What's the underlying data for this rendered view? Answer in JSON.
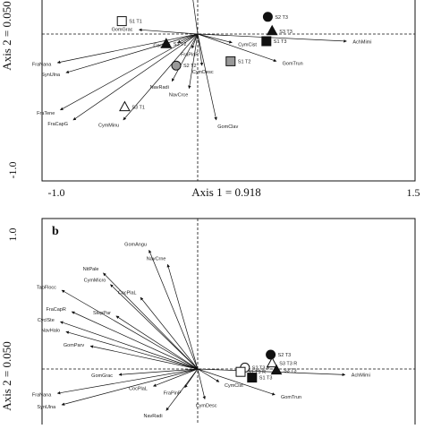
{
  "chart_data": [
    {
      "type": "scatter",
      "panel_label": "",
      "xlabel": "Axis 1 = 0.918",
      "ylabel": "Axis 2 = 0.050",
      "xticks": [
        "-1.0",
        "1.5"
      ],
      "yticks": [
        "-1.0"
      ],
      "xlim": [
        -1.0,
        1.5
      ],
      "ylim": [
        -1.0,
        0.65
      ],
      "species_vectors": [
        {
          "name": "GomParv",
          "x": -0.08,
          "y": 0.58
        },
        {
          "name": "GomGrac",
          "x": -0.41,
          "y": 0.03
        },
        {
          "name": "CocPlaL",
          "x": -0.14,
          "y": -0.06
        },
        {
          "name": "FraPinP",
          "x": -0.04,
          "y": -0.1
        },
        {
          "name": "NavRadi",
          "x": -0.18,
          "y": -0.33
        },
        {
          "name": "NavCrce",
          "x": -0.06,
          "y": -0.38
        },
        {
          "name": "CymDesc",
          "x": 0.03,
          "y": -0.22
        },
        {
          "name": "CymCist",
          "x": 0.24,
          "y": -0.06
        },
        {
          "name": "GomTrun",
          "x": 0.55,
          "y": -0.19
        },
        {
          "name": "AchMimi",
          "x": 1.04,
          "y": -0.05
        },
        {
          "name": "GomClav",
          "x": 0.13,
          "y": -0.6
        },
        {
          "name": "FraNana",
          "x": -0.98,
          "y": -0.2
        },
        {
          "name": "SynUlna",
          "x": -0.92,
          "y": -0.27
        },
        {
          "name": "FraTene",
          "x": -0.96,
          "y": -0.53
        },
        {
          "name": "FraCapG",
          "x": -0.87,
          "y": -0.6
        },
        {
          "name": "CymMinu",
          "x": -0.52,
          "y": -0.6
        }
      ],
      "sites": [
        {
          "name": "S1 T1",
          "marker": "square-open",
          "x": -0.53,
          "y": 0.09
        },
        {
          "name": "S3 T2",
          "marker": "triangle-filled",
          "x": -0.22,
          "y": -0.07
        },
        {
          "name": "S2 T2",
          "marker": "circle-grey",
          "x": -0.15,
          "y": -0.22
        },
        {
          "name": "S2 T3",
          "marker": "circle-filled",
          "x": 0.49,
          "y": 0.12
        },
        {
          "name": "S3 T3",
          "marker": "triangle-filled",
          "x": 0.52,
          "y": 0.02
        },
        {
          "name": "S1 T3",
          "marker": "square-filled",
          "x": 0.48,
          "y": -0.05
        },
        {
          "name": "S1 T2",
          "marker": "square-grey",
          "x": 0.23,
          "y": -0.19
        },
        {
          "name": "S3 T1",
          "marker": "triangle-open",
          "x": -0.51,
          "y": -0.51
        }
      ]
    },
    {
      "type": "scatter",
      "panel_label": "b",
      "xlabel": "",
      "ylabel": "Axis 2 = 0.050",
      "xticks": [],
      "yticks": [
        "1.0"
      ],
      "xlim": [
        -1.0,
        1.5
      ],
      "ylim": [
        -0.35,
        1.0
      ],
      "species_vectors": [
        {
          "name": "GomAngu",
          "x": -0.34,
          "y": 0.83
        },
        {
          "name": "NavCrne",
          "x": -0.21,
          "y": 0.73
        },
        {
          "name": "NitPale",
          "x": -0.66,
          "y": 0.67
        },
        {
          "name": "CymMicro",
          "x": -0.61,
          "y": 0.59
        },
        {
          "name": "CocPlaL",
          "x": -0.4,
          "y": 0.5
        },
        {
          "name": "TabFlocc",
          "x": -0.95,
          "y": 0.55
        },
        {
          "name": "FraCapR",
          "x": -0.88,
          "y": 0.4
        },
        {
          "name": "StepPar",
          "x": -0.57,
          "y": 0.37
        },
        {
          "name": "CyclSte",
          "x": -0.96,
          "y": 0.33
        },
        {
          "name": "NavHalo",
          "x": -0.92,
          "y": 0.26
        },
        {
          "name": "GomParv",
          "x": -0.75,
          "y": 0.16
        },
        {
          "name": "GomGrac",
          "x": -0.55,
          "y": -0.04
        },
        {
          "name": "CocPlaL",
          "x": -0.31,
          "y": -0.12
        },
        {
          "name": "FraPinP",
          "x": -0.09,
          "y": -0.13
        },
        {
          "name": "CymDesc",
          "x": 0.05,
          "y": -0.21
        },
        {
          "name": "CymCist",
          "x": 0.15,
          "y": -0.09
        },
        {
          "name": "GomTrun",
          "x": 0.54,
          "y": -0.18
        },
        {
          "name": "AchMimi",
          "x": 1.03,
          "y": -0.04
        },
        {
          "name": "NavRadi",
          "x": -0.22,
          "y": -0.29
        },
        {
          "name": "FraNana",
          "x": -0.98,
          "y": -0.17
        },
        {
          "name": "SynUlna",
          "x": -0.95,
          "y": -0.25
        }
      ],
      "sites": [
        {
          "name": "S2 T3",
          "marker": "circle-filled",
          "x": 0.51,
          "y": 0.1
        },
        {
          "name": "S2 T3 R",
          "marker": "circle-open",
          "x": 0.33,
          "y": 0.01
        },
        {
          "name": "S3 T3 R",
          "marker": "triangle-open",
          "x": 0.52,
          "y": 0.04
        },
        {
          "name": "S3 T3",
          "marker": "triangle-filled",
          "x": 0.55,
          "y": -0.01
        },
        {
          "name": "S1 T3 R",
          "marker": "square-open",
          "x": 0.3,
          "y": -0.02
        },
        {
          "name": "S1 T3",
          "marker": "square-filled",
          "x": 0.38,
          "y": -0.06
        }
      ]
    }
  ]
}
